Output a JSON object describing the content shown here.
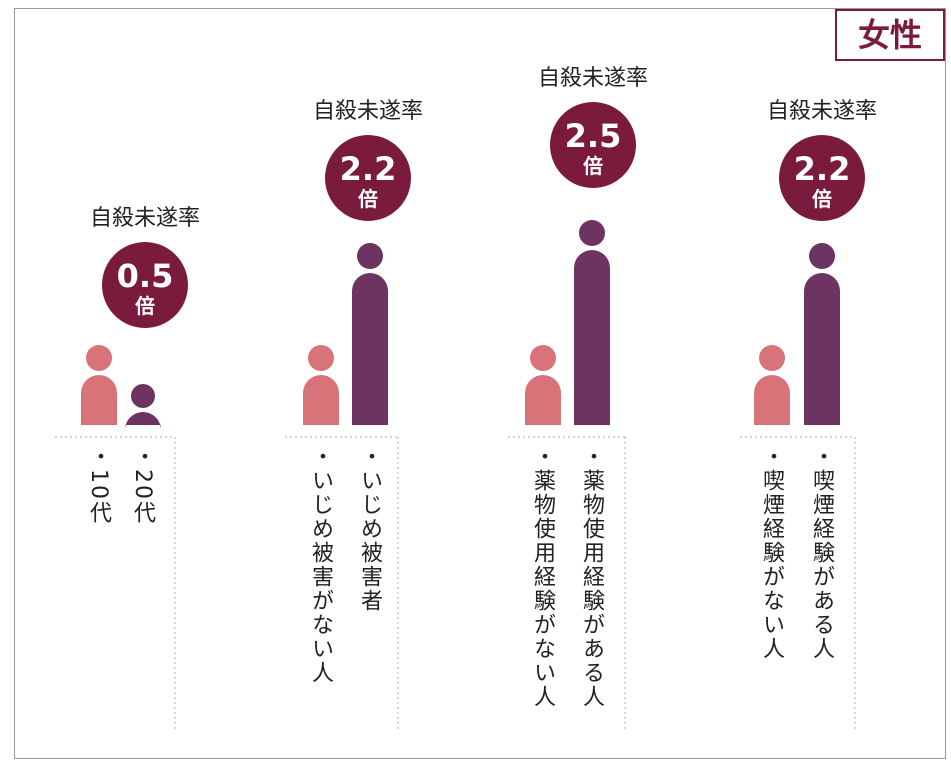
{
  "badge": "女性",
  "groups": [
    {
      "heading": "自殺未遂率",
      "ratio": "0.5",
      "unit": "倍",
      "people": [
        {
          "label": "・10代"
        },
        {
          "label": "・20代"
        }
      ]
    },
    {
      "heading": "自殺未遂率",
      "ratio": "2.2",
      "unit": "倍",
      "people": [
        {
          "label": "・いじめ被害がない人"
        },
        {
          "label": "・いじめ被害者"
        }
      ]
    },
    {
      "heading": "自殺未遂率",
      "ratio": "2.5",
      "unit": "倍",
      "people": [
        {
          "label": "・薬物使用経験がない人"
        },
        {
          "label": "・薬物使用経験がある人"
        }
      ]
    },
    {
      "heading": "自殺未遂率",
      "ratio": "2.2",
      "unit": "倍",
      "people": [
        {
          "label": "・喫煙経験がない人"
        },
        {
          "label": "・喫煙経験がある人"
        }
      ]
    }
  ]
}
